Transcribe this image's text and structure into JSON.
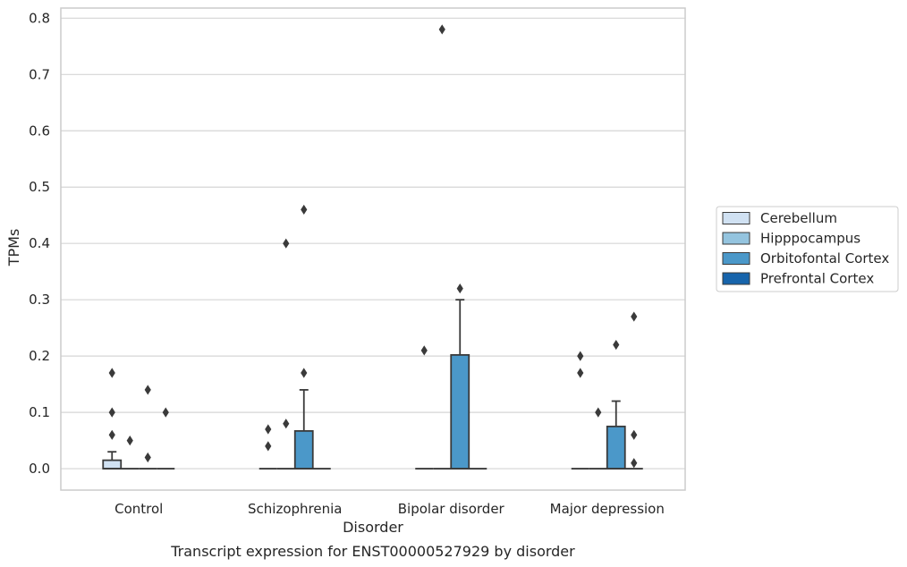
{
  "chart_data": {
    "type": "box",
    "xlabel": "Disorder",
    "ylabel": "TPMs",
    "caption": "Transcript expression for ENST00000527929 by disorder",
    "ylim": [
      -0.038,
      0.818
    ],
    "yticks": [
      "0.0",
      "0.1",
      "0.2",
      "0.3",
      "0.4",
      "0.5",
      "0.6",
      "0.7",
      "0.8"
    ],
    "grid": true,
    "legend_placement": "right",
    "categories": [
      "Control",
      "Schizophrenia",
      "Bipolar disorder",
      "Major depression"
    ],
    "series": [
      {
        "name": "Cerebellum",
        "color": "#d0e1f2"
      },
      {
        "name": "Hipppocampus",
        "color": "#94c4df"
      },
      {
        "name": "Orbitofontal Cortex",
        "color": "#4b98c9"
      },
      {
        "name": "Prefrontal Cortex",
        "color": "#1764ab"
      }
    ],
    "boxes": [
      {
        "category": 0,
        "series": 0,
        "q1": 0.0,
        "median": 0.0,
        "q3": 0.015,
        "whisker_low": 0.0,
        "whisker_high": 0.03,
        "outliers": [
          0.17,
          0.1,
          0.06
        ]
      },
      {
        "category": 0,
        "series": 1,
        "q1": 0.0,
        "median": 0.0,
        "q3": 0.0,
        "whisker_low": 0.0,
        "whisker_high": 0.0,
        "outliers": [
          0.05
        ]
      },
      {
        "category": 0,
        "series": 2,
        "q1": 0.0,
        "median": 0.0,
        "q3": 0.0,
        "whisker_low": 0.0,
        "whisker_high": 0.0,
        "outliers": [
          0.14,
          0.02
        ]
      },
      {
        "category": 0,
        "series": 3,
        "q1": 0.0,
        "median": 0.0,
        "q3": 0.0,
        "whisker_low": 0.0,
        "whisker_high": 0.0,
        "outliers": [
          0.1
        ]
      },
      {
        "category": 1,
        "series": 0,
        "q1": 0.0,
        "median": 0.0,
        "q3": 0.0,
        "whisker_low": 0.0,
        "whisker_high": 0.0,
        "outliers": [
          0.07,
          0.04
        ]
      },
      {
        "category": 1,
        "series": 1,
        "q1": 0.0,
        "median": 0.0,
        "q3": 0.0,
        "whisker_low": 0.0,
        "whisker_high": 0.0,
        "outliers": [
          0.4,
          0.08
        ]
      },
      {
        "category": 1,
        "series": 2,
        "q1": 0.0,
        "median": 0.0,
        "q3": 0.067,
        "whisker_low": 0.0,
        "whisker_high": 0.14,
        "outliers": [
          0.46,
          0.17
        ]
      },
      {
        "category": 1,
        "series": 3,
        "q1": 0.0,
        "median": 0.0,
        "q3": 0.0,
        "whisker_low": 0.0,
        "whisker_high": 0.0,
        "outliers": []
      },
      {
        "category": 2,
        "series": 0,
        "q1": 0.0,
        "median": 0.0,
        "q3": 0.0,
        "whisker_low": 0.0,
        "whisker_high": 0.0,
        "outliers": [
          0.21
        ]
      },
      {
        "category": 2,
        "series": 1,
        "q1": 0.0,
        "median": 0.0,
        "q3": 0.0,
        "whisker_low": 0.0,
        "whisker_high": 0.0,
        "outliers": [
          0.78
        ]
      },
      {
        "category": 2,
        "series": 2,
        "q1": 0.0,
        "median": 0.0,
        "q3": 0.202,
        "whisker_low": 0.0,
        "whisker_high": 0.3,
        "outliers": [
          0.32
        ]
      },
      {
        "category": 2,
        "series": 3,
        "q1": 0.0,
        "median": 0.0,
        "q3": 0.0,
        "whisker_low": 0.0,
        "whisker_high": 0.0,
        "outliers": []
      },
      {
        "category": 3,
        "series": 0,
        "q1": 0.0,
        "median": 0.0,
        "q3": 0.0,
        "whisker_low": 0.0,
        "whisker_high": 0.0,
        "outliers": [
          0.2,
          0.17
        ]
      },
      {
        "category": 3,
        "series": 1,
        "q1": 0.0,
        "median": 0.0,
        "q3": 0.0,
        "whisker_low": 0.0,
        "whisker_high": 0.0,
        "outliers": [
          0.1
        ]
      },
      {
        "category": 3,
        "series": 2,
        "q1": 0.0,
        "median": 0.0,
        "q3": 0.075,
        "whisker_low": 0.0,
        "whisker_high": 0.12,
        "outliers": [
          0.22
        ]
      },
      {
        "category": 3,
        "series": 3,
        "q1": 0.0,
        "median": 0.0,
        "q3": 0.0,
        "whisker_low": 0.0,
        "whisker_high": 0.0,
        "outliers": [
          0.27,
          0.06,
          0.01
        ]
      }
    ]
  }
}
